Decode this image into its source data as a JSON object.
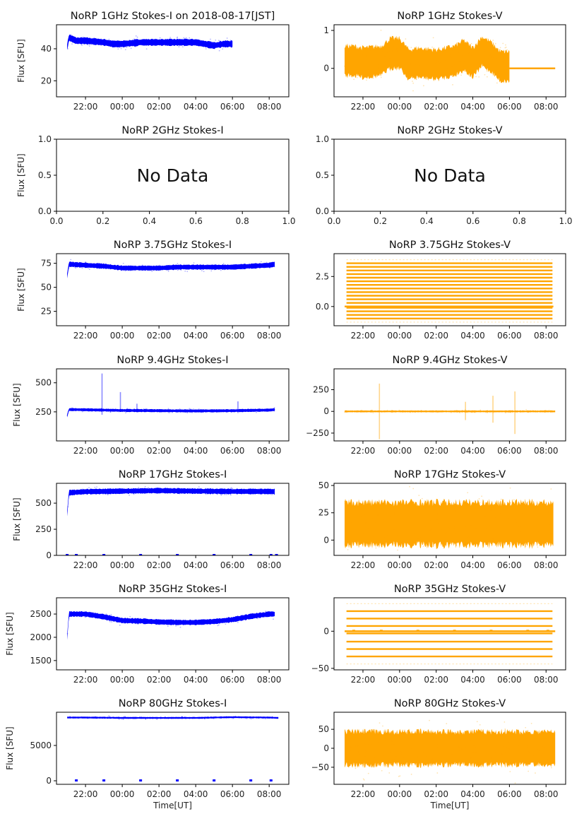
{
  "chart_data": [
    {
      "type": "scatter",
      "id": "1ghz-i",
      "title": "NoRP 1GHz Stokes-I on 2018-08-17[JST]",
      "ylabel": "Flux [SFU]",
      "xlabel": "",
      "ylim": [
        10,
        55
      ],
      "yticks": [
        "20",
        "40"
      ],
      "ytick_values": [
        20,
        40
      ],
      "xticks": [
        "22:00",
        "00:00",
        "02:00",
        "04:00",
        "06:00",
        "08:00"
      ],
      "color": "#0000ff",
      "has_data": true,
      "series": [
        {
          "name": "Stokes-I",
          "x_hours": [
            21.0,
            21.1,
            21.5,
            22.0,
            23.0,
            23.5,
            0.0,
            1.0,
            2.0,
            3.0,
            4.0,
            4.5,
            5.0,
            5.5,
            6.0
          ],
          "y": [
            41,
            47,
            45,
            45,
            44,
            43,
            43,
            44,
            44,
            44,
            44,
            43,
            42,
            43,
            43
          ],
          "spread": 2
        }
      ]
    },
    {
      "type": "scatter",
      "id": "1ghz-v",
      "title": "NoRP 1GHz Stokes-V",
      "ylabel": "",
      "xlabel": "",
      "ylim": [
        -0.75,
        1.15
      ],
      "yticks": [
        "0",
        "1"
      ],
      "ytick_values": [
        0,
        1
      ],
      "xticks": [
        "22:00",
        "00:00",
        "02:00",
        "04:00",
        "06:00",
        "08:00"
      ],
      "color": "#ffa500",
      "has_data": true,
      "series": [
        {
          "name": "Stokes-V",
          "x_hours": [
            21.0,
            21.5,
            22.0,
            23.0,
            23.5,
            0.0,
            0.5,
            1.0,
            2.0,
            3.0,
            3.5,
            4.0,
            4.5,
            5.0,
            5.5,
            6.0
          ],
          "y": [
            0.2,
            0.2,
            0.15,
            0.2,
            0.4,
            0.4,
            0.1,
            0.15,
            0.1,
            0.2,
            0.35,
            0.15,
            0.45,
            0.3,
            0.05,
            0.05
          ],
          "spread": 0.4
        },
        {
          "name": "zero-fill",
          "x_hours": [
            6.0,
            8.5
          ],
          "y": [
            0,
            0
          ],
          "spread": 0
        }
      ]
    },
    {
      "type": "scatter",
      "id": "2ghz-i",
      "title": "NoRP 2GHz Stokes-I",
      "ylabel": "Flux [SFU]",
      "xlabel": "",
      "ylim": [
        0,
        1
      ],
      "yticks": [
        "0.0",
        "0.5",
        "1.0"
      ],
      "ytick_values": [
        0,
        0.5,
        1
      ],
      "xticks": [
        "0.0",
        "0.2",
        "0.4",
        "0.6",
        "0.8",
        "1.0"
      ],
      "color": "#0000ff",
      "has_data": false,
      "annotation": "No Data",
      "series": []
    },
    {
      "type": "scatter",
      "id": "2ghz-v",
      "title": "NoRP 2GHz Stokes-V",
      "ylabel": "",
      "xlabel": "",
      "ylim": [
        0,
        1
      ],
      "yticks": [
        "0.0",
        "0.5",
        "1.0"
      ],
      "ytick_values": [
        0,
        0.5,
        1
      ],
      "xticks": [
        "0.0",
        "0.2",
        "0.4",
        "0.6",
        "0.8",
        "1.0"
      ],
      "color": "#ffa500",
      "has_data": false,
      "annotation": "No Data",
      "series": []
    },
    {
      "type": "scatter",
      "id": "3ghz-i",
      "title": "NoRP 3.75GHz Stokes-I",
      "ylabel": "Flux [SFU]",
      "xlabel": "",
      "ylim": [
        10,
        85
      ],
      "yticks": [
        "25",
        "50",
        "75"
      ],
      "ytick_values": [
        25,
        50,
        75
      ],
      "xticks": [
        "22:00",
        "00:00",
        "02:00",
        "04:00",
        "06:00",
        "08:00"
      ],
      "color": "#0000ff",
      "has_data": true,
      "series": [
        {
          "name": "Stokes-I",
          "x_hours": [
            21.0,
            21.1,
            22.0,
            23.0,
            0.0,
            1.0,
            2.0,
            3.0,
            4.0,
            5.0,
            6.0,
            7.0,
            8.0,
            8.3
          ],
          "y": [
            62,
            74,
            73,
            72,
            70,
            70,
            70,
            71,
            71,
            71,
            71,
            72,
            73,
            74
          ],
          "spread": 2.5
        }
      ]
    },
    {
      "type": "scatter",
      "id": "3ghz-v",
      "title": "NoRP 3.75GHz Stokes-V",
      "ylabel": "",
      "xlabel": "",
      "ylim": [
        -1.6,
        4.4
      ],
      "yticks": [
        "0.0",
        "2.5"
      ],
      "ytick_values": [
        0,
        2.5
      ],
      "xticks": [
        "22:00",
        "00:00",
        "02:00",
        "04:00",
        "06:00",
        "08:00"
      ],
      "color": "#ffa500",
      "has_data": true,
      "levels": [
        -1.3,
        -1.0,
        -0.7,
        -0.4,
        -0.1,
        0.3,
        0.6,
        0.9,
        1.2,
        1.5,
        1.8,
        2.1,
        2.4,
        2.7,
        3.0,
        3.3,
        3.6,
        3.9
      ],
      "series": [
        {
          "name": "Stokes-V",
          "x_hours": [
            21.0,
            8.4
          ],
          "y": [
            0,
            0
          ],
          "spread": 0
        }
      ]
    },
    {
      "type": "scatter",
      "id": "9ghz-i",
      "title": "NoRP 9.4GHz Stokes-I",
      "ylabel": "Flux [SFU]",
      "xlabel": "",
      "ylim": [
        0,
        620
      ],
      "yticks": [
        "250",
        "500"
      ],
      "ytick_values": [
        250,
        500
      ],
      "xticks": [
        "22:00",
        "00:00",
        "02:00",
        "04:00",
        "06:00",
        "08:00"
      ],
      "color": "#0000ff",
      "has_data": true,
      "series": [
        {
          "name": "Stokes-I",
          "x_hours": [
            21.0,
            21.1,
            22.0,
            23.0,
            0.0,
            2.0,
            4.0,
            6.0,
            8.0,
            8.3
          ],
          "y": [
            215,
            270,
            268,
            265,
            262,
            260,
            258,
            260,
            265,
            270
          ],
          "spread": 12
        }
      ],
      "spikes": [
        {
          "x_hour": 22.9,
          "ymax": 580,
          "ymin": 225
        },
        {
          "x_hour": 0.8,
          "ymax": 320,
          "ymin": 250
        },
        {
          "x_hour": 6.3,
          "ymax": 340,
          "ymin": 240
        },
        {
          "x_hour": 23.9,
          "ymax": 420,
          "ymin": 260
        }
      ]
    },
    {
      "type": "scatter",
      "id": "9ghz-v",
      "title": "NoRP 9.4GHz Stokes-V",
      "ylabel": "",
      "xlabel": "",
      "ylim": [
        -340,
        490
      ],
      "yticks": [
        "−250",
        "0",
        "250"
      ],
      "ytick_values": [
        -250,
        0,
        250
      ],
      "xticks": [
        "22:00",
        "00:00",
        "02:00",
        "04:00",
        "06:00",
        "08:00"
      ],
      "color": "#ffa500",
      "has_data": true,
      "series": [
        {
          "name": "Stokes-V",
          "x_hours": [
            21.0,
            8.5
          ],
          "y": [
            0,
            0
          ],
          "spread": 10
        }
      ],
      "spikes": [
        {
          "x_hour": 22.9,
          "ymax": 320,
          "ymin": -320
        },
        {
          "x_hour": 6.3,
          "ymax": 230,
          "ymin": -260
        },
        {
          "x_hour": 3.6,
          "ymax": 110,
          "ymin": -100
        },
        {
          "x_hour": 5.1,
          "ymax": 180,
          "ymin": -130
        }
      ]
    },
    {
      "type": "scatter",
      "id": "17ghz-i",
      "title": "NoRP 17GHz Stokes-I",
      "ylabel": "Flux [SFU]",
      "xlabel": "",
      "ylim": [
        0,
        690
      ],
      "yticks": [
        "0",
        "250",
        "500"
      ],
      "ytick_values": [
        0,
        250,
        500
      ],
      "xticks": [
        "22:00",
        "00:00",
        "02:00",
        "04:00",
        "06:00",
        "08:00"
      ],
      "color": "#0000ff",
      "has_data": true,
      "series": [
        {
          "name": "Stokes-I",
          "x_hours": [
            21.0,
            21.1,
            22.0,
            0.0,
            2.0,
            4.0,
            6.0,
            8.0,
            8.3
          ],
          "y": [
            400,
            600,
            610,
            615,
            620,
            615,
            612,
            612,
            610
          ],
          "spread": 25
        }
      ],
      "zero_dots_hours": [
        21.0,
        21.5,
        23.0,
        1.0,
        3.0,
        5.0,
        7.0,
        8.1,
        8.4
      ]
    },
    {
      "type": "scatter",
      "id": "17ghz-v",
      "title": "NoRP 17GHz Stokes-V",
      "ylabel": "",
      "xlabel": "",
      "ylim": [
        -14,
        52
      ],
      "yticks": [
        "0",
        "25",
        "50"
      ],
      "ytick_values": [
        0,
        25,
        50
      ],
      "xticks": [
        "22:00",
        "00:00",
        "02:00",
        "04:00",
        "06:00",
        "08:00"
      ],
      "color": "#ffa500",
      "has_data": true,
      "series": [
        {
          "name": "Stokes-V",
          "x_hours": [
            21.0,
            8.4
          ],
          "y": [
            15,
            15
          ],
          "spread": 20
        }
      ]
    },
    {
      "type": "scatter",
      "id": "35ghz-i",
      "title": "NoRP 35GHz Stokes-I",
      "ylabel": "Flux [SFU]",
      "xlabel": "",
      "ylim": [
        1300,
        2850
      ],
      "yticks": [
        "1500",
        "2000",
        "2500"
      ],
      "ytick_values": [
        1500,
        2000,
        2500
      ],
      "xticks": [
        "22:00",
        "00:00",
        "02:00",
        "04:00",
        "06:00",
        "08:00"
      ],
      "color": "#0000ff",
      "has_data": true,
      "series": [
        {
          "name": "Stokes-I",
          "x_hours": [
            21.0,
            21.1,
            22.0,
            23.0,
            0.0,
            1.0,
            2.0,
            3.0,
            4.0,
            5.0,
            6.0,
            7.0,
            8.0,
            8.3
          ],
          "y": [
            2000,
            2500,
            2500,
            2440,
            2360,
            2350,
            2330,
            2320,
            2320,
            2340,
            2380,
            2450,
            2500,
            2500
          ],
          "spread": 55
        }
      ]
    },
    {
      "type": "scatter",
      "id": "35ghz-v",
      "title": "NoRP 35GHz Stokes-V",
      "ylabel": "",
      "xlabel": "",
      "ylim": [
        -52,
        45
      ],
      "yticks": [
        "−50",
        "0"
      ],
      "ytick_values": [
        -50,
        0
      ],
      "xticks": [
        "22:00",
        "00:00",
        "02:00",
        "04:00",
        "06:00",
        "08:00"
      ],
      "color": "#ffa500",
      "has_data": true,
      "levels": [
        -44,
        -34,
        -24,
        -14,
        -3,
        7,
        17,
        27,
        37
      ],
      "series": [
        {
          "name": "Stokes-V",
          "x_hours": [
            21.0,
            8.5
          ],
          "y": [
            0,
            0
          ],
          "spread": 0
        }
      ],
      "zero_dots_hours": [
        21.5,
        23.0,
        1.0,
        3.0,
        5.0,
        7.0,
        8.1
      ]
    },
    {
      "type": "scatter",
      "id": "80ghz-i",
      "title": "NoRP 80GHz Stokes-I",
      "ylabel": "Flux [SFU]",
      "xlabel": "Time[UT]",
      "ylim": [
        -500,
        9700
      ],
      "yticks": [
        "0",
        "5000"
      ],
      "ytick_values": [
        0,
        5000
      ],
      "xticks": [
        "22:00",
        "00:00",
        "02:00",
        "04:00",
        "06:00",
        "08:00"
      ],
      "color": "#0000ff",
      "has_data": true,
      "series": [
        {
          "name": "Stokes-I",
          "x_hours": [
            21.0,
            22.0,
            0.0,
            2.0,
            4.0,
            6.0,
            8.0,
            8.5
          ],
          "y": [
            8950,
            8950,
            8900,
            8900,
            8900,
            9000,
            8950,
            8900
          ],
          "spread": 120
        }
      ],
      "zero_dots_hours": [
        21.5,
        23.0,
        1.0,
        3.0,
        5.0,
        7.0,
        8.1
      ]
    },
    {
      "type": "scatter",
      "id": "80ghz-v",
      "title": "NoRP 80GHz Stokes-V",
      "ylabel": "",
      "xlabel": "Time[UT]",
      "ylim": [
        -95,
        95
      ],
      "yticks": [
        "−50",
        "0",
        "50"
      ],
      "ytick_values": [
        -50,
        0,
        50
      ],
      "xticks": [
        "22:00",
        "00:00",
        "02:00",
        "04:00",
        "06:00",
        "08:00"
      ],
      "color": "#ffa500",
      "has_data": true,
      "series": [
        {
          "name": "Stokes-V",
          "x_hours": [
            21.0,
            8.5
          ],
          "y": [
            0,
            0
          ],
          "spread": 45
        }
      ]
    }
  ]
}
